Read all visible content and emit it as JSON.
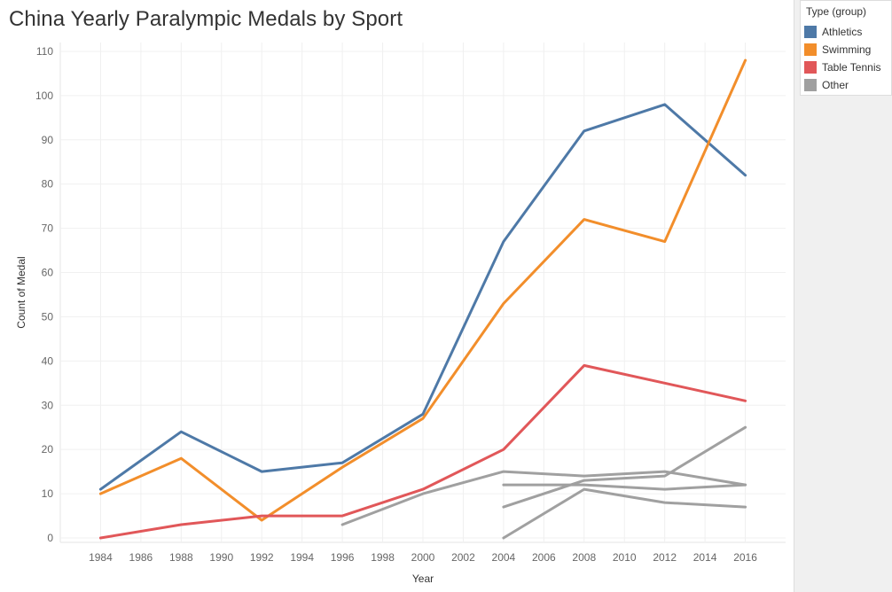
{
  "title": "China Yearly Paralympic Medals by Sport",
  "legend": {
    "title": "Type (group)",
    "items": [
      {
        "label": "Athletics",
        "color": "#4e79a7"
      },
      {
        "label": "Swimming",
        "color": "#f28e2b"
      },
      {
        "label": "Table Tennis",
        "color": "#e15759"
      },
      {
        "label": "Other",
        "color": "#a0a0a0"
      }
    ]
  },
  "chart_data": {
    "type": "line",
    "title": "China Yearly Paralympic Medals by Sport",
    "xlabel": "Year",
    "ylabel": "Count of Medal",
    "xlim": [
      1982,
      2018
    ],
    "ylim": [
      -1,
      112
    ],
    "x_ticks": [
      1984,
      1986,
      1988,
      1990,
      1992,
      1994,
      1996,
      1998,
      2000,
      2002,
      2004,
      2006,
      2008,
      2010,
      2012,
      2014,
      2016
    ],
    "y_ticks": [
      0,
      10,
      20,
      30,
      40,
      50,
      60,
      70,
      80,
      90,
      100,
      110
    ],
    "grid": true,
    "legend_position": "top-right",
    "series": [
      {
        "name": "Athletics",
        "color": "#4e79a7",
        "points": [
          [
            1984,
            11
          ],
          [
            1988,
            24
          ],
          [
            1992,
            15
          ],
          [
            1996,
            17
          ],
          [
            2000,
            28
          ],
          [
            2004,
            67
          ],
          [
            2008,
            92
          ],
          [
            2012,
            98
          ],
          [
            2016,
            82
          ]
        ]
      },
      {
        "name": "Swimming",
        "color": "#f28e2b",
        "points": [
          [
            1984,
            10
          ],
          [
            1988,
            18
          ],
          [
            1992,
            4
          ],
          [
            1996,
            16
          ],
          [
            2000,
            27
          ],
          [
            2004,
            53
          ],
          [
            2008,
            72
          ],
          [
            2012,
            67
          ],
          [
            2016,
            108
          ]
        ]
      },
      {
        "name": "Table Tennis",
        "color": "#e15759",
        "points": [
          [
            1984,
            0
          ],
          [
            1988,
            3
          ],
          [
            1992,
            5
          ],
          [
            1996,
            5
          ],
          [
            2000,
            11
          ],
          [
            2004,
            20
          ],
          [
            2008,
            39
          ],
          [
            2012,
            35
          ],
          [
            2016,
            31
          ]
        ]
      },
      {
        "name": "Other",
        "color": "#a0a0a0",
        "points": [
          [
            1996,
            3
          ],
          [
            2000,
            10
          ],
          [
            2004,
            15
          ],
          [
            2008,
            14
          ],
          [
            2012,
            15
          ],
          [
            2016,
            12
          ]
        ]
      },
      {
        "name": "Other",
        "color": "#a0a0a0",
        "points": [
          [
            2004,
            12
          ],
          [
            2008,
            12
          ],
          [
            2012,
            11
          ],
          [
            2016,
            12
          ]
        ]
      },
      {
        "name": "Other",
        "color": "#a0a0a0",
        "points": [
          [
            2004,
            7
          ],
          [
            2008,
            13
          ],
          [
            2012,
            14
          ],
          [
            2016,
            25
          ]
        ]
      },
      {
        "name": "Other",
        "color": "#a0a0a0",
        "points": [
          [
            2004,
            0
          ],
          [
            2008,
            11
          ],
          [
            2012,
            8
          ],
          [
            2016,
            7
          ]
        ]
      }
    ]
  }
}
